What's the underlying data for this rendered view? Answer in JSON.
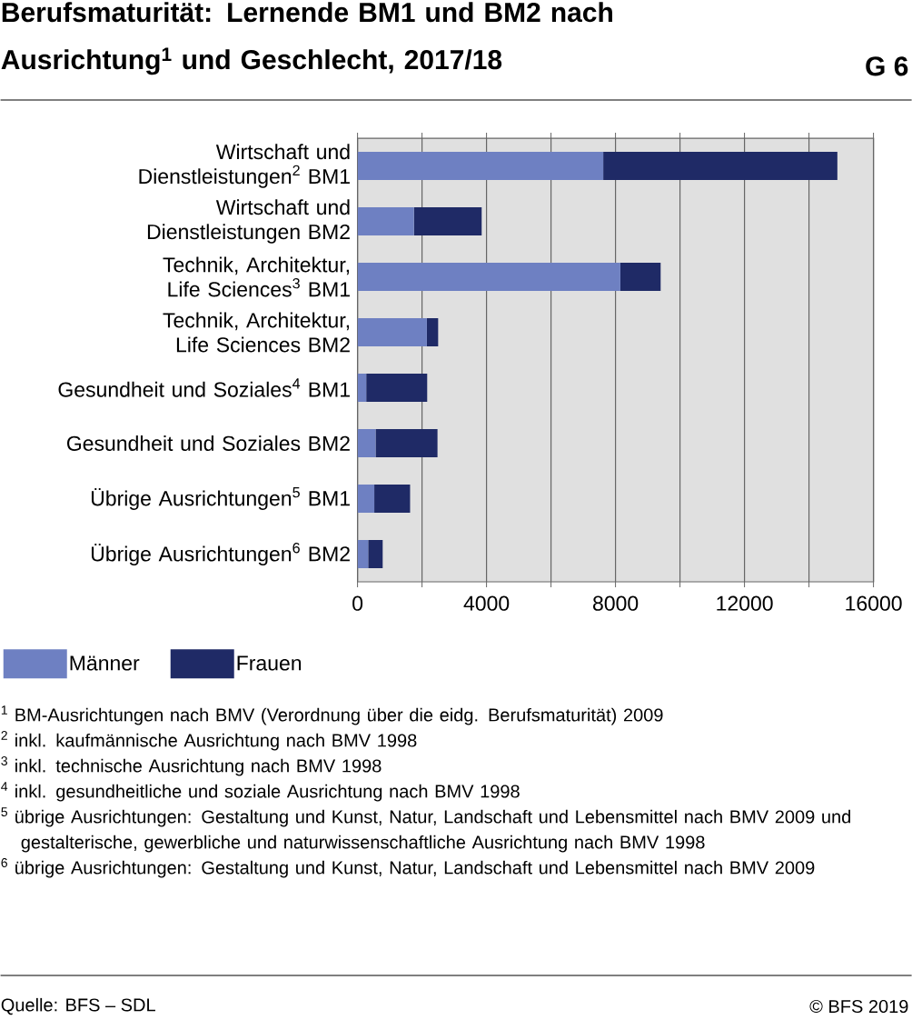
{
  "chart_data": {
    "type": "bar",
    "orientation": "horizontal",
    "stacked": true,
    "title": "Berufsmaturität: Lernende BM1 und BM2 nach Ausrichtung$^{1}$ und Geschlecht, 2017/18",
    "categories": [
      "Wirtschaft und Dienstleistungen$^{2}$ BM1",
      "Wirtschaft und Dienstleistungen BM2",
      "Technik, Architektur, Life Sciences$^{3}$ BM1",
      "Technik, Architektur, Life Sciences BM2",
      "Gesundheit und Soziales$^{4}$ BM1",
      "Gesundheit und Soziales BM2",
      "Übrige Ausrichtungen$^{5}$ BM1",
      "Übrige Ausrichtungen$^{6}$ BM2"
    ],
    "series": [
      {
        "name": "Männer",
        "color": "#6e80c2",
        "values": [
          7620,
          1750,
          8150,
          2150,
          270,
          560,
          520,
          330
        ]
      },
      {
        "name": "Frauen",
        "color": "#1f2a66",
        "values": [
          7260,
          2100,
          1250,
          350,
          1890,
          1920,
          1110,
          450
        ]
      }
    ],
    "xlim": [
      0,
      16000
    ],
    "xticks": [
      0,
      {
        "value": 2000,
        "label": null
      },
      4000,
      {
        "value": 6000,
        "label": null
      },
      8000,
      {
        "value": 10000,
        "label": null
      },
      12000,
      {
        "value": 14000,
        "label": null
      },
      16000
    ],
    "grid": "x",
    "legend": "bottom",
    "annotations": [
      "G 6",
      "$^{1}$ BM-Ausrichtungen nach BMV (Verordnung über die eidg. Berufsmaturität) 2009",
      "$^{2}$ inkl. kaufmännische Ausrichtung nach BMV 1998",
      "$^{3}$ inkl. technische Ausrichtung nach BMV 1998",
      "$^{4}$ inkl. gesundheitliche und soziale Ausrichtung nach BMV 1998",
      "$^{5}$ übrige Ausrichtungen: Gestaltung und Kunst, Natur, Landschaft und Lebensmittel nach BMV 2009 und gestalterische, gewerbliche und naturwissenschaftliche Ausrichtung nach BMV 1998",
      "$^{6}$ übrige Ausrichtungen: Gestaltung und Kunst, Natur, Landschaft und Lebensmittel nach BMV 2009",
      "Quelle: BFS – SDL",
      "© BFS 2019"
    ]
  }
}
